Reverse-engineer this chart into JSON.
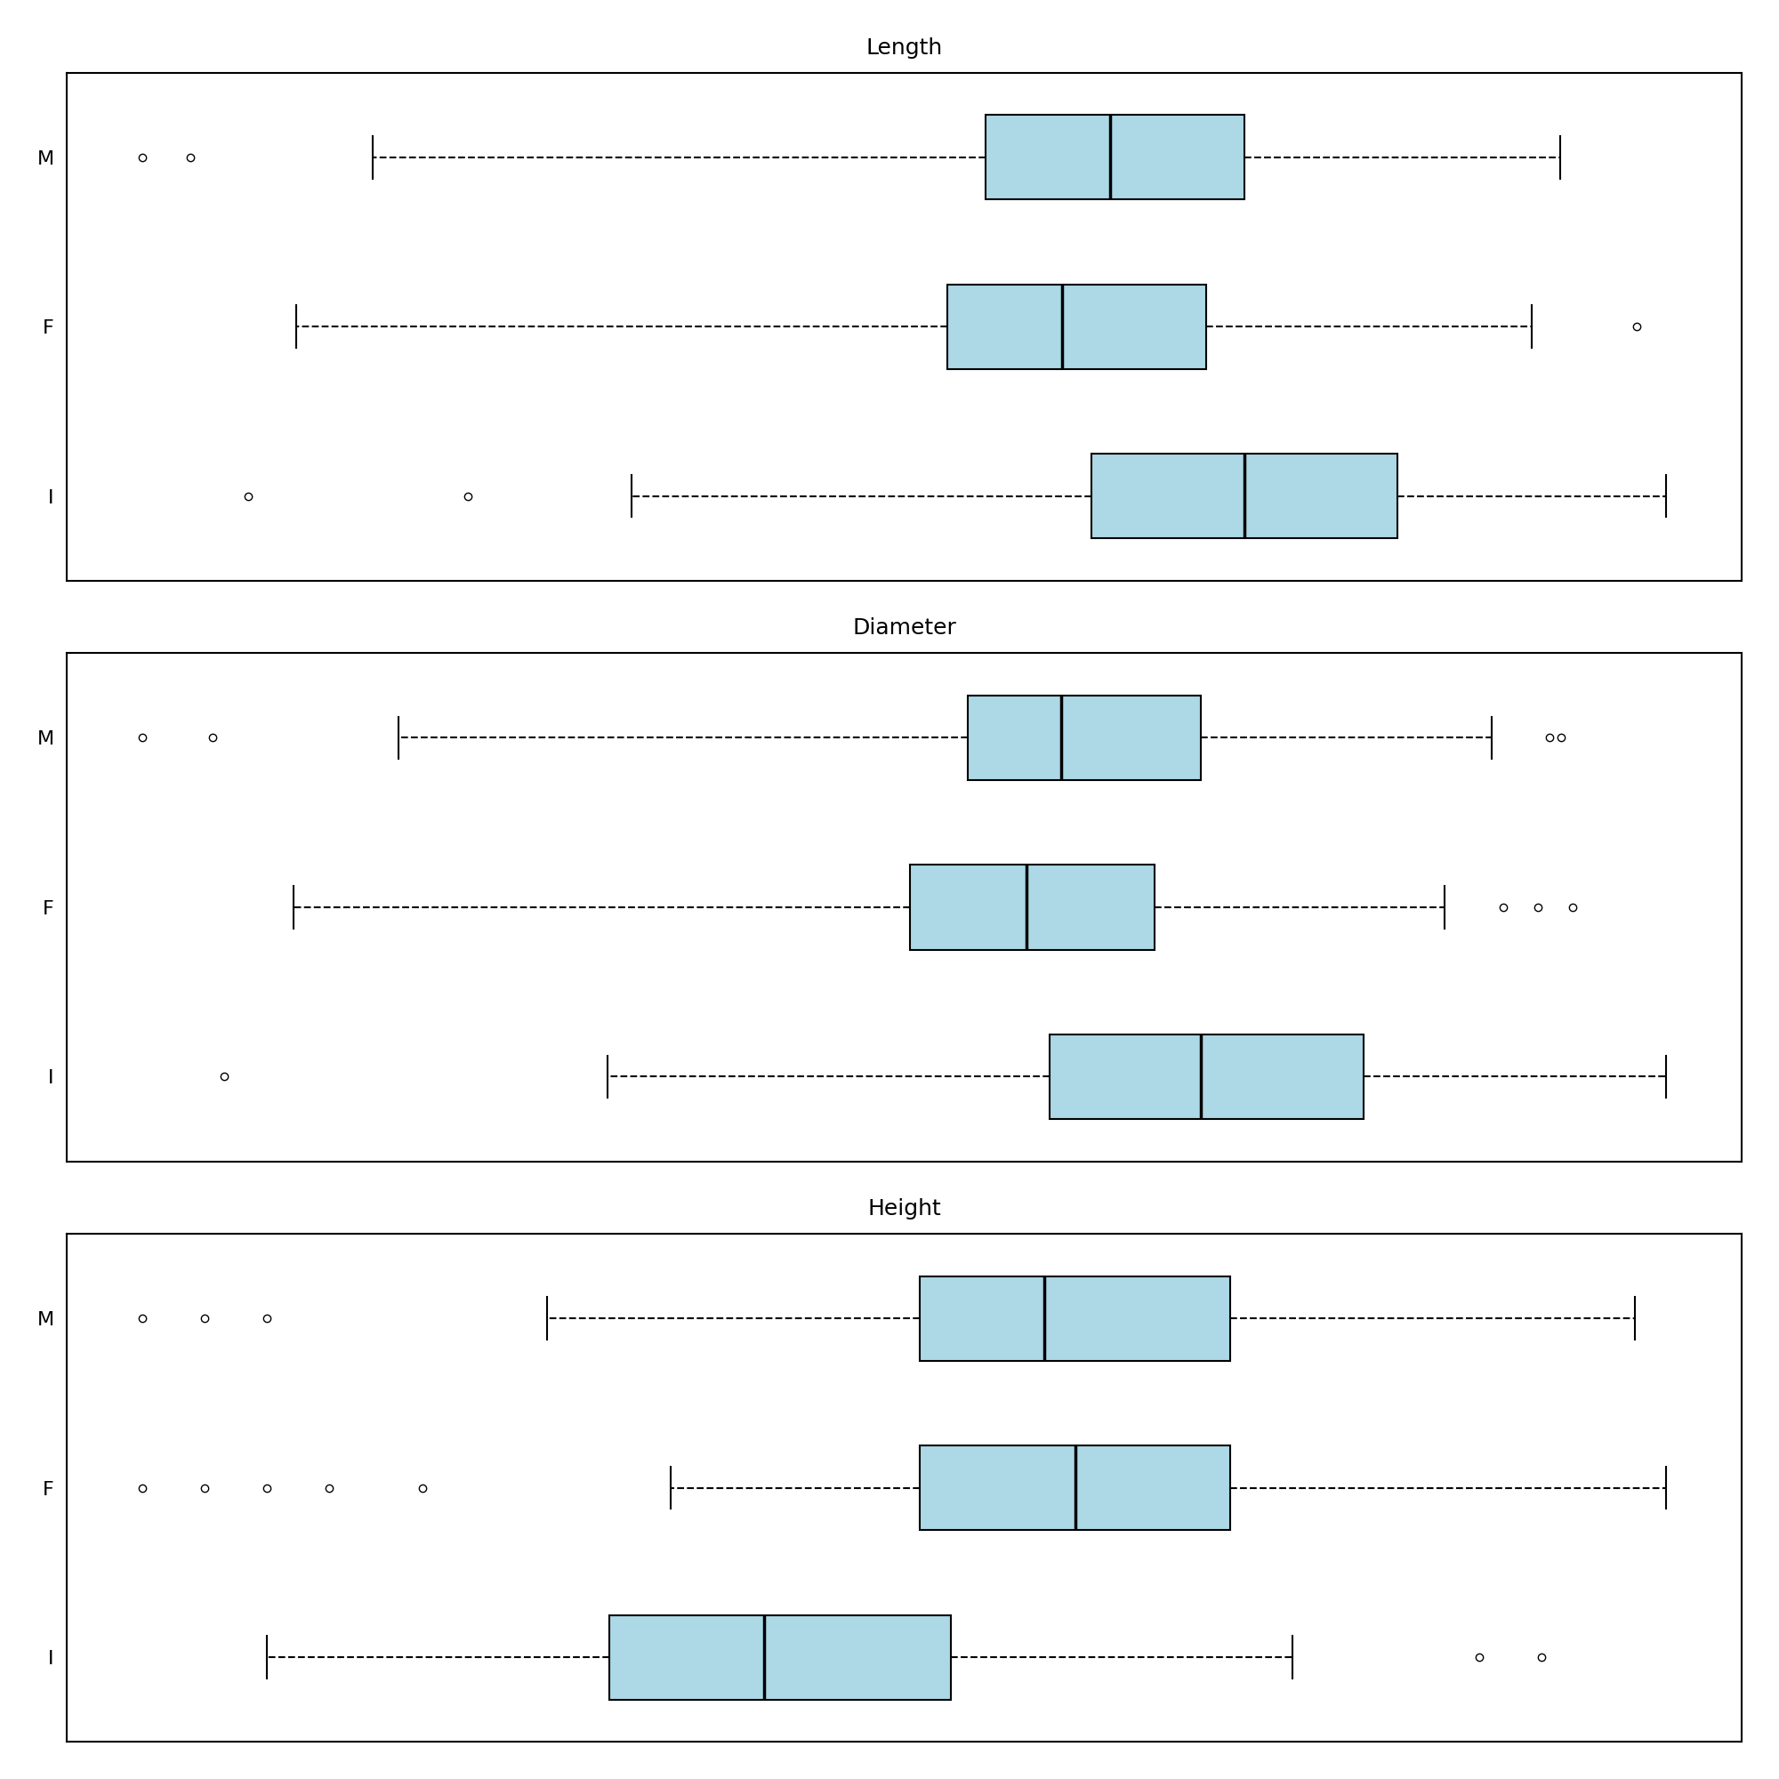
{
  "variables": [
    "Length",
    "Diameter",
    "Height"
  ],
  "categories_display": [
    "M",
    "F",
    "I"
  ],
  "box_color": "#add8e6",
  "box_edgecolor": "#000000",
  "whisker_color": "#000000",
  "median_color": "#000000",
  "flier_color": "#000000",
  "background_color": "#ffffff",
  "title_fontsize": 18,
  "label_fontsize": 16,
  "Length": {
    "M": {
      "whislo": 0.195,
      "q1": 0.515,
      "med": 0.58,
      "q3": 0.65,
      "whishi": 0.815,
      "fliers_low": [
        0.075,
        0.1
      ],
      "fliers_high": []
    },
    "F": {
      "whislo": 0.155,
      "q1": 0.495,
      "med": 0.555,
      "q3": 0.63,
      "whishi": 0.8,
      "fliers_low": [],
      "fliers_high": [
        0.855
      ]
    },
    "I": {
      "whislo": 0.33,
      "q1": 0.57,
      "med": 0.65,
      "q3": 0.73,
      "whishi": 0.87,
      "fliers_low": [
        0.13,
        0.245
      ],
      "fliers_high": []
    }
  },
  "Diameter": {
    "M": {
      "whislo": 0.165,
      "q1": 0.41,
      "med": 0.45,
      "q3": 0.51,
      "whishi": 0.635,
      "fliers_low": [
        0.055,
        0.085
      ],
      "fliers_high": [
        0.66,
        0.665
      ]
    },
    "F": {
      "whislo": 0.12,
      "q1": 0.385,
      "med": 0.435,
      "q3": 0.49,
      "whishi": 0.615,
      "fliers_low": [],
      "fliers_high": [
        0.64,
        0.655,
        0.67
      ]
    },
    "I": {
      "whislo": 0.255,
      "q1": 0.445,
      "med": 0.51,
      "q3": 0.58,
      "whishi": 0.71,
      "fliers_low": [
        0.09
      ],
      "fliers_high": []
    }
  },
  "Height": {
    "M": {
      "whislo": 0.075,
      "q1": 0.135,
      "med": 0.155,
      "q3": 0.185,
      "whishi": 0.25,
      "fliers_low": [
        0.01,
        0.02,
        0.03
      ],
      "fliers_high": []
    },
    "F": {
      "whislo": 0.095,
      "q1": 0.135,
      "med": 0.16,
      "q3": 0.185,
      "whishi": 0.255,
      "fliers_low": [
        0.01,
        0.02,
        0.03,
        0.04,
        0.055
      ],
      "fliers_high": []
    },
    "I": {
      "whislo": 0.03,
      "q1": 0.085,
      "med": 0.11,
      "q3": 0.14,
      "whishi": 0.195,
      "fliers_low": [],
      "fliers_high": [
        0.225,
        0.235
      ]
    }
  }
}
